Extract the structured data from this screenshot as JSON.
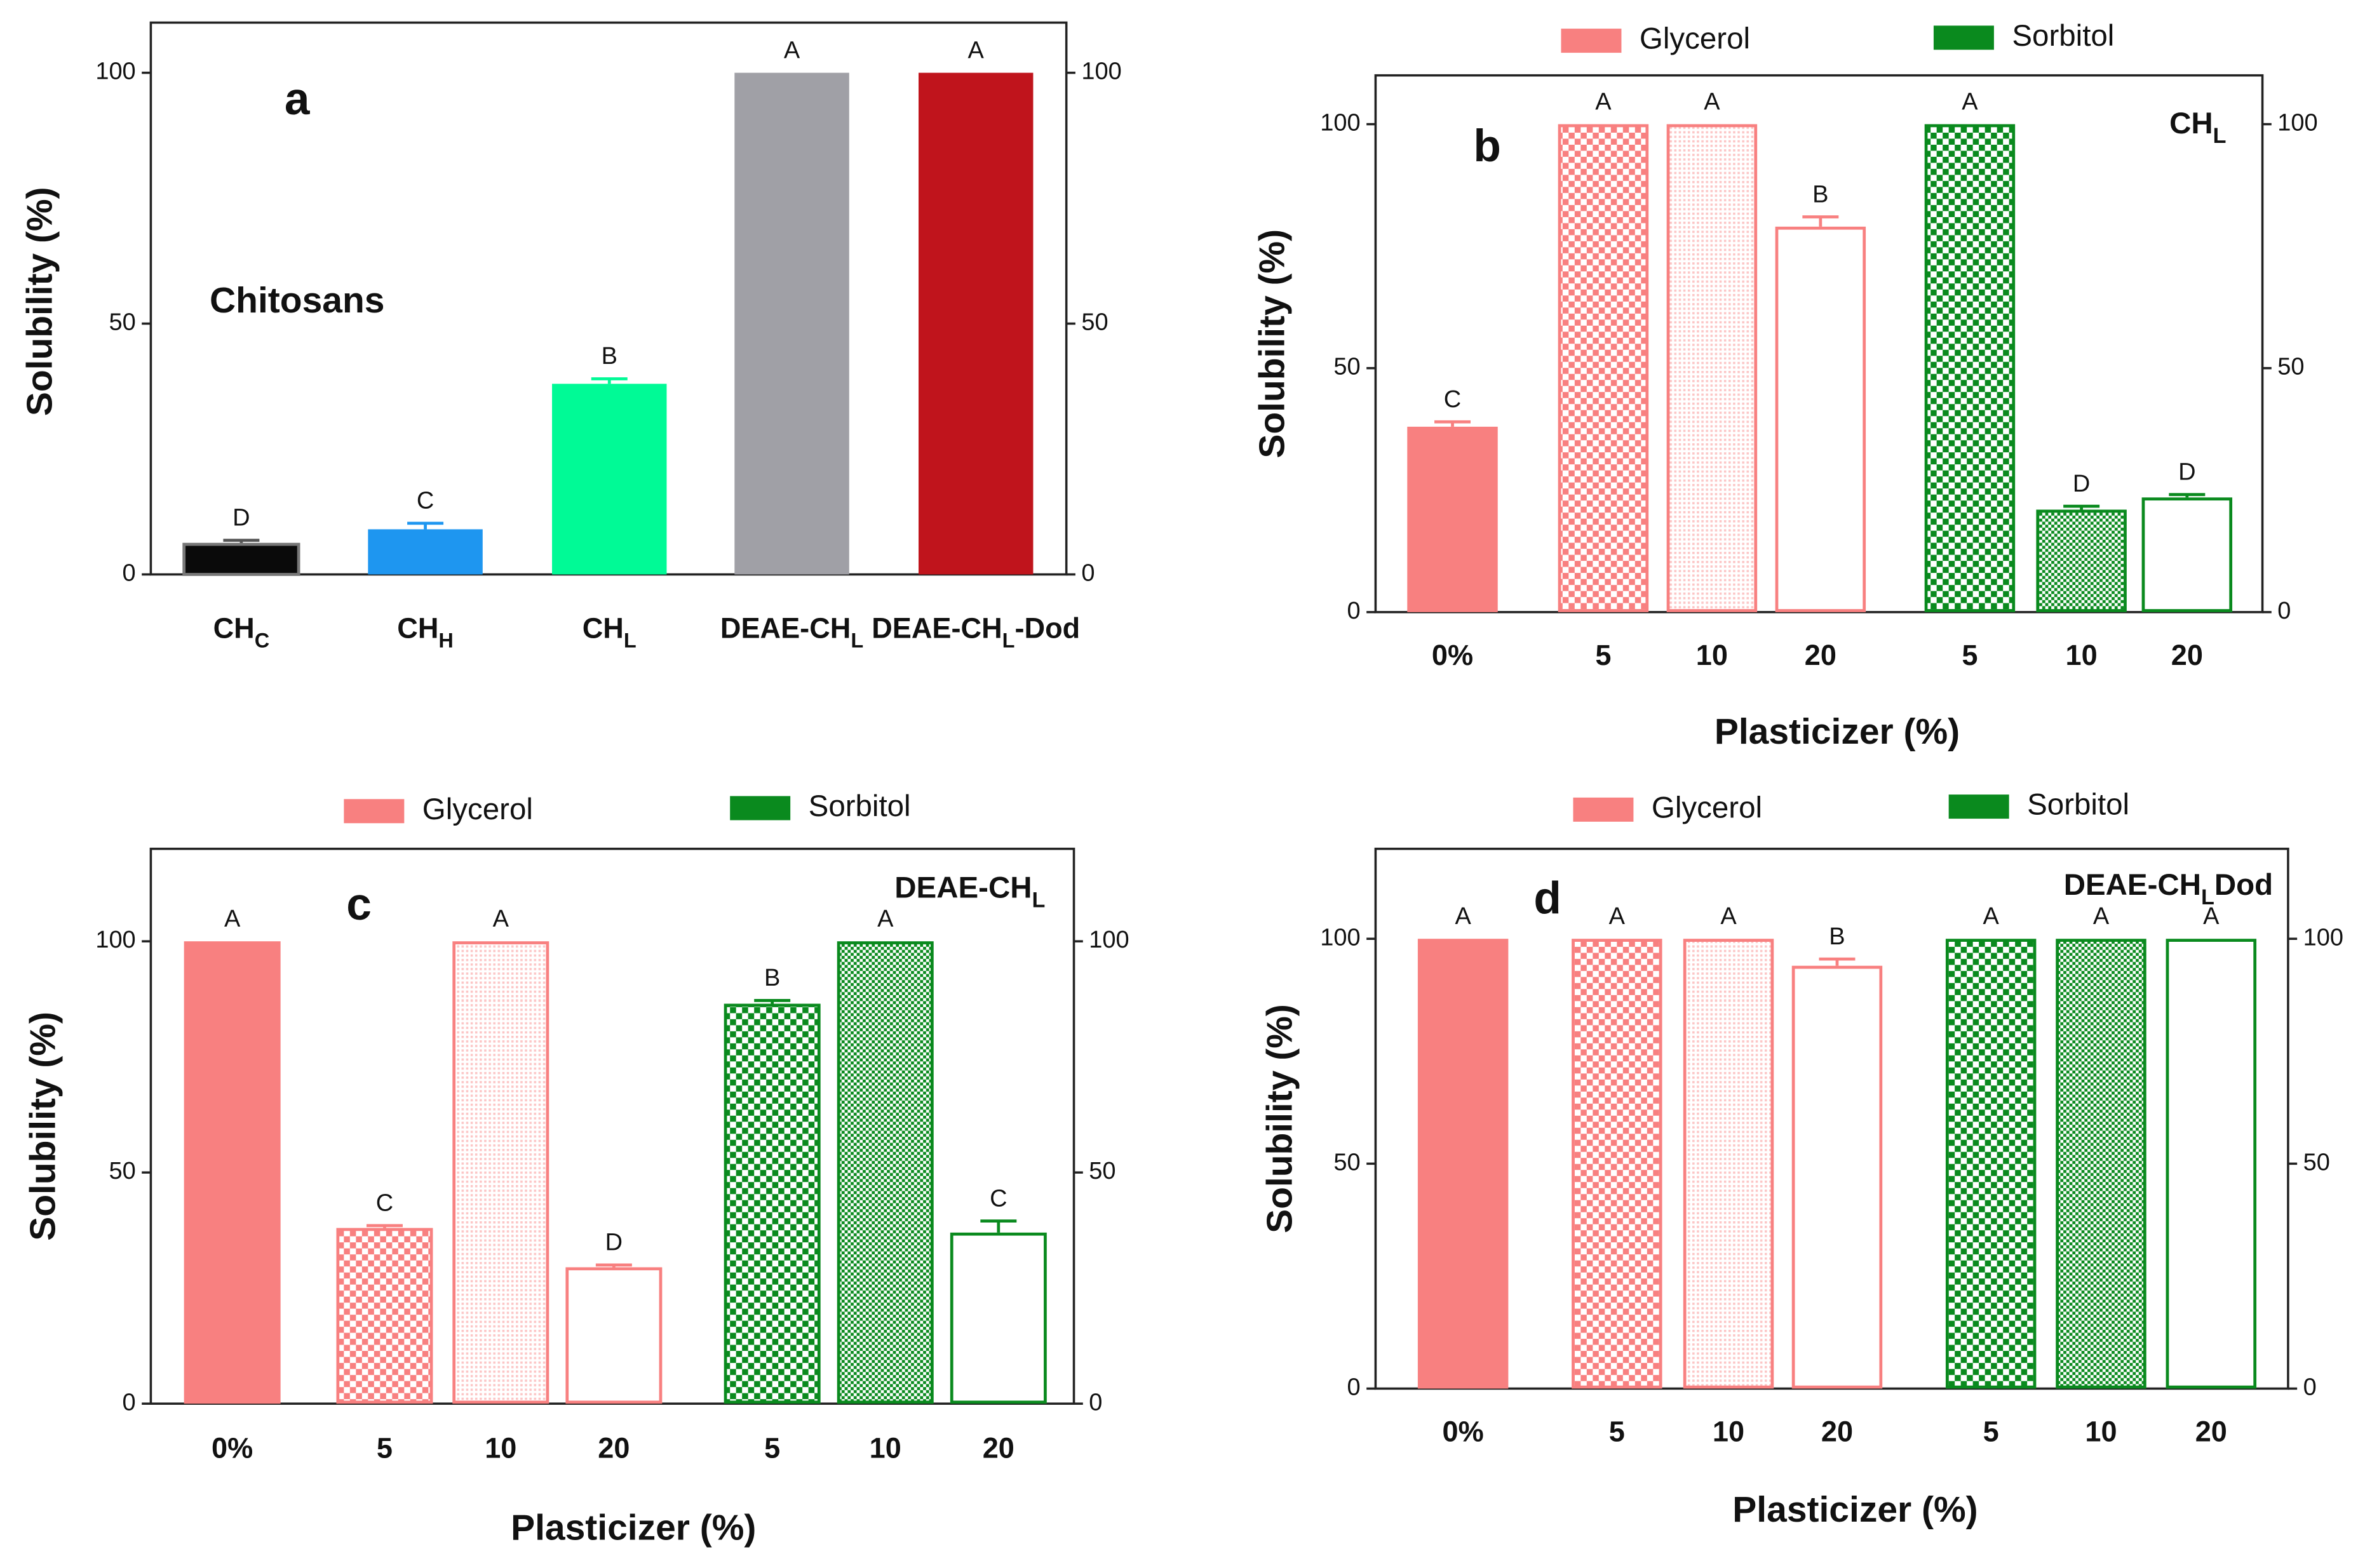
{
  "chart_data": [
    {
      "type": "bar",
      "panel_label": "a",
      "note": "Chitosans",
      "y_label": "Solubility (%)",
      "categories": [
        [
          "CH",
          "C"
        ],
        [
          "CH",
          "H"
        ],
        [
          "CH",
          "L"
        ],
        [
          "DEAE-CH",
          "L"
        ],
        [
          "DEAE-CH",
          "L",
          "-Dod"
        ]
      ],
      "values": [
        6,
        9,
        38,
        100,
        100
      ],
      "errors": [
        0.8,
        1.2,
        1,
        null,
        null
      ],
      "letters": [
        "D",
        "C",
        "B",
        "A",
        "A"
      ],
      "colors": [
        "#0a0a0a",
        "#1e96f0",
        "#00fa96",
        "#a0a0a6",
        "#c0141c"
      ],
      "ylim": [
        0,
        110
      ],
      "yticks": [
        0,
        50,
        100
      ],
      "y2lim": [
        0,
        110
      ],
      "y2ticks": [
        0,
        50,
        100
      ]
    },
    {
      "type": "bar",
      "panel_label": "b",
      "inset_title": [
        "CH",
        "L"
      ],
      "y_label": "Solubility (%)",
      "x_label": "Plasticizer (%)",
      "categories": [
        "0%",
        "5",
        "10",
        "20",
        "5",
        "10",
        "20"
      ],
      "series": [
        {
          "name": "Glycerol",
          "color": "#f88080",
          "values": [
            38,
            100,
            100,
            79,
            null,
            null,
            null
          ],
          "errors": [
            1,
            null,
            null,
            2,
            null,
            null,
            null
          ]
        },
        {
          "name": "Sorbitol",
          "color": "#0a8a1e",
          "values": [
            null,
            null,
            null,
            null,
            100,
            21,
            23.5
          ],
          "errors": [
            null,
            null,
            null,
            null,
            null,
            0.7,
            0.6
          ]
        }
      ],
      "fills": [
        "solid",
        "checker",
        "fine",
        "outline",
        "checker",
        "dense",
        "outline"
      ],
      "letters": [
        "C",
        "A",
        "A",
        "B",
        "A",
        "D",
        "D"
      ],
      "ylim": [
        0,
        110
      ],
      "yticks": [
        0,
        50,
        100
      ],
      "y2lim": [
        0,
        110
      ],
      "y2ticks": [
        0,
        50,
        100
      ]
    },
    {
      "type": "bar",
      "panel_label": "c",
      "inset_title": [
        "DEAE-CH",
        "L"
      ],
      "y_label": "Solubility (%)",
      "x_label": "Plasticizer (%)",
      "categories": [
        "0%",
        "5",
        "10",
        "20",
        "5",
        "10",
        "20"
      ],
      "series": [
        {
          "name": "Glycerol",
          "color": "#f88080",
          "values": [
            100,
            38,
            100,
            29.5,
            null,
            null,
            null
          ],
          "errors": [
            null,
            0.5,
            null,
            0.5,
            null,
            null,
            null
          ]
        },
        {
          "name": "Sorbitol",
          "color": "#0a8a1e",
          "values": [
            null,
            null,
            null,
            null,
            86.5,
            100,
            37
          ],
          "errors": [
            null,
            null,
            null,
            null,
            0.7,
            null,
            2.5
          ]
        }
      ],
      "fills": [
        "solid",
        "checker",
        "fine",
        "outline",
        "checker",
        "dense",
        "outline"
      ],
      "letters": [
        "A",
        "C",
        "A",
        "D",
        "B",
        "A",
        "C"
      ],
      "ylim": [
        0,
        120
      ],
      "yticks": [
        0,
        50,
        100
      ],
      "y2lim": [
        0,
        120
      ],
      "y2ticks": [
        0,
        50,
        100
      ]
    },
    {
      "type": "bar",
      "panel_label": "d",
      "inset_title": [
        "DEAE-CH",
        "L",
        "Dod"
      ],
      "y_label": "Solubility (%)",
      "x_label": "Plasticizer (%)",
      "categories": [
        "0%",
        "5",
        "10",
        "20",
        "5",
        "10",
        "20"
      ],
      "series": [
        {
          "name": "Glycerol",
          "color": "#f88080",
          "values": [
            100,
            100,
            100,
            94,
            null,
            null,
            null
          ],
          "errors": [
            null,
            null,
            null,
            1.5,
            null,
            null,
            null
          ]
        },
        {
          "name": "Sorbitol",
          "color": "#0a8a1e",
          "values": [
            null,
            null,
            null,
            null,
            100,
            100,
            100
          ],
          "errors": [
            null,
            null,
            null,
            null,
            null,
            null,
            null
          ]
        }
      ],
      "fills": [
        "solid",
        "checker",
        "fine",
        "outline",
        "checker",
        "dense",
        "outline"
      ],
      "letters": [
        "A",
        "A",
        "A",
        "B",
        "A",
        "A",
        "A"
      ],
      "ylim": [
        0,
        120
      ],
      "yticks": [
        0,
        50,
        100
      ],
      "y2lim": [
        0,
        120
      ],
      "y2ticks": [
        0,
        50,
        100
      ]
    }
  ]
}
